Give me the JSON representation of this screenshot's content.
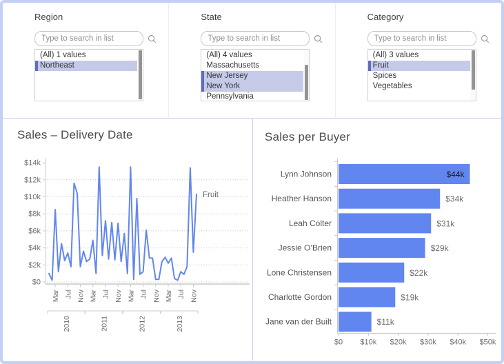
{
  "frame": {
    "border_color": "#c2d1f3"
  },
  "accent_color": "#6286ef",
  "selection_color": "#c5cae9",
  "selection_bar_color": "#5f6cc0",
  "icons": {
    "search": "magnifier-icon"
  },
  "filters": [
    {
      "title": "Region",
      "placeholder": "Type to search in list",
      "items": [
        {
          "label": "(All) 1 values",
          "selected": false
        },
        {
          "label": "Northeast",
          "selected": true
        }
      ],
      "scroll_thumb": {
        "top_pct": 2,
        "height_pct": 95
      }
    },
    {
      "title": "State",
      "placeholder": "Type to search in list",
      "items": [
        {
          "label": "(All) 4 values",
          "selected": false
        },
        {
          "label": "Massachusetts",
          "selected": false
        },
        {
          "label": "New Jersey",
          "selected": true
        },
        {
          "label": "New York",
          "selected": true
        },
        {
          "label": "Pennsylvania",
          "selected": false
        }
      ],
      "scroll_thumb": {
        "top_pct": 30,
        "height_pct": 68
      }
    },
    {
      "title": "Category",
      "placeholder": "Type to search in list",
      "items": [
        {
          "label": "(All) 3 values",
          "selected": false
        },
        {
          "label": "Fruit",
          "selected": true
        },
        {
          "label": "Spices",
          "selected": false
        },
        {
          "label": "Vegetables",
          "selected": false
        }
      ],
      "scroll_thumb": {
        "top_pct": 2,
        "height_pct": 76
      }
    }
  ],
  "chart_data": [
    {
      "type": "line",
      "title": "Sales – Delivery Date",
      "series_label": "Fruit",
      "x": {
        "years": [
          "2010",
          "2011",
          "2012",
          "2013"
        ],
        "month_ticks": [
          "Mar",
          "Jul",
          "Nov"
        ],
        "start_month": "Jan 2010",
        "months_total": 48
      },
      "values_k": [
        1.0,
        0.2,
        8.5,
        1.2,
        4.5,
        2.5,
        3.4,
        1.8,
        11.6,
        10.4,
        1.8,
        3.6,
        2.4,
        2.7,
        4.9,
        1.0,
        13.5,
        3.1,
        7.2,
        2.7,
        7.0,
        2.6,
        6.9,
        2.4,
        5.7,
        1.0,
        13.5,
        0.3,
        9.8,
        0.9,
        1.2,
        6.1,
        2.8,
        2.8,
        0.3,
        0.3,
        2.4,
        2.9,
        2.2,
        2.8,
        0.4,
        0.2,
        1.2,
        0.9,
        1.8,
        13.4,
        3.5,
        10.3
      ],
      "y_ticks": [
        "$0",
        "$2k",
        "$4k",
        "$6k",
        "$8k",
        "$10k",
        "$12k",
        "$14k"
      ],
      "ylim_k": [
        0,
        14
      ],
      "grid": "dotted-horizontal",
      "line_color": "#6286ef"
    },
    {
      "type": "bar",
      "title": "Sales per Buyer",
      "orientation": "horizontal",
      "categories": [
        "Lynn Johnson",
        "Heather Hanson",
        "Leah Colter",
        "Jessie O’Brien",
        "Lone Christensen",
        "Charlotte Gordon",
        "Jane van der Built"
      ],
      "values_k": [
        44,
        34,
        31,
        29,
        22,
        19,
        11
      ],
      "value_labels": [
        "$44k",
        "$34k",
        "$31k",
        "$29k",
        "$22k",
        "$19k",
        "$11k"
      ],
      "x_ticks": [
        "$0",
        "$10k",
        "$20k",
        "$30k",
        "$40k",
        "$50k"
      ],
      "xlim_k": [
        0,
        50
      ],
      "bar_color": "#6286ef",
      "first_label_inside": true
    }
  ]
}
